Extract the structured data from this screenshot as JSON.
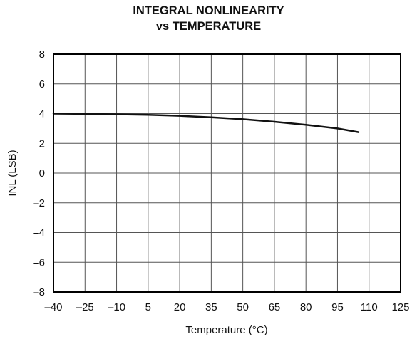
{
  "chart_data": {
    "type": "line",
    "title": [
      "INTEGRAL NONLINEARITY",
      "vs TEMPERATURE"
    ],
    "xlabel": "Temperature (°C)",
    "ylabel": "INL (LSB)",
    "xlim": [
      -40,
      125
    ],
    "ylim": [
      -8,
      8
    ],
    "x_ticks": [
      -40,
      -25,
      -10,
      5,
      20,
      35,
      50,
      65,
      80,
      95,
      110,
      125
    ],
    "x_tick_labels": [
      "–40",
      "–25",
      "–10",
      "5",
      "20",
      "35",
      "50",
      "65",
      "80",
      "95",
      "110",
      "125"
    ],
    "y_ticks": [
      8,
      6,
      4,
      2,
      0,
      -2,
      -4,
      -6,
      -8
    ],
    "y_tick_labels": [
      "8",
      "6",
      "4",
      "2",
      "0",
      "–2",
      "–4",
      "–6",
      "–8"
    ],
    "grid": true,
    "series": [
      {
        "x": [
          -40,
          -25,
          -10,
          5,
          20,
          35,
          50,
          65,
          80,
          95,
          105
        ],
        "y": [
          4.0,
          3.98,
          3.95,
          3.92,
          3.85,
          3.75,
          3.62,
          3.45,
          3.25,
          3.0,
          2.75
        ]
      }
    ],
    "line_color": "#111111"
  }
}
